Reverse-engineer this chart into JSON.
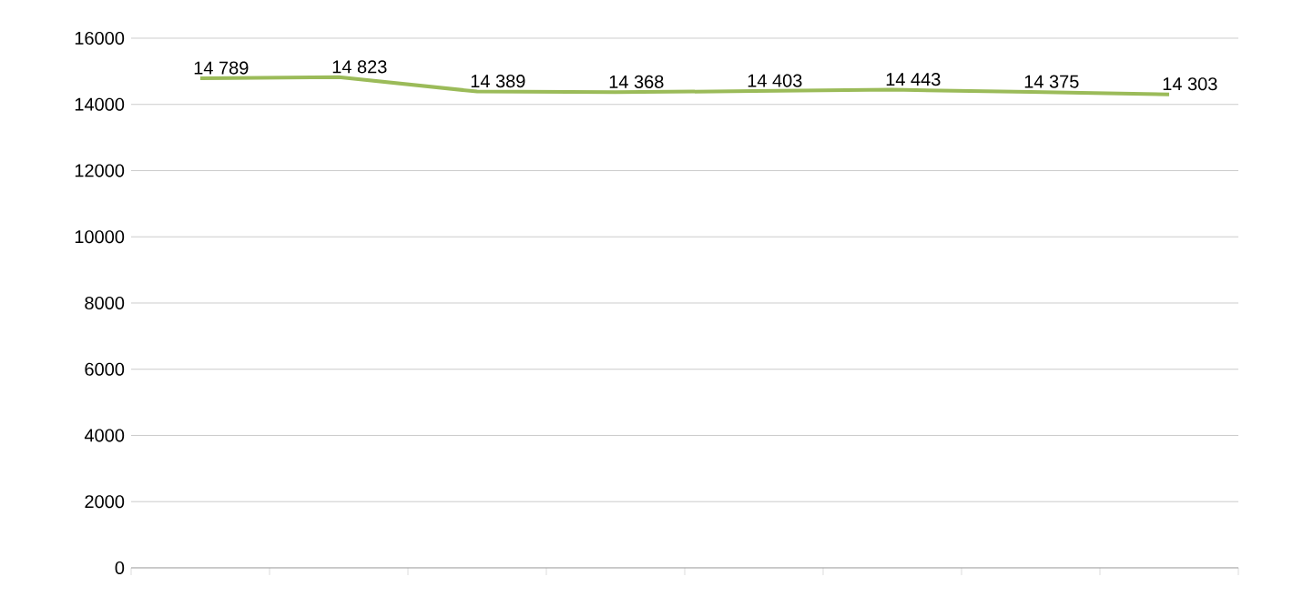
{
  "chart_data": {
    "type": "line",
    "categories": [
      null,
      null,
      null,
      null,
      null,
      null,
      null,
      null
    ],
    "values": [
      14789,
      14823,
      14389,
      14368,
      14403,
      14443,
      14375,
      14303
    ],
    "value_labels": [
      "14 789",
      "14 823",
      "14 389",
      "14 368",
      "14 403",
      "14 443",
      "14 375",
      "14 303"
    ],
    "color": "#9bbb59",
    "ylim": [
      0,
      16000
    ],
    "yticks": [
      0,
      2000,
      4000,
      6000,
      8000,
      10000,
      12000,
      14000,
      16000
    ],
    "grid": "y",
    "marker": "none",
    "line_style": "solid"
  }
}
